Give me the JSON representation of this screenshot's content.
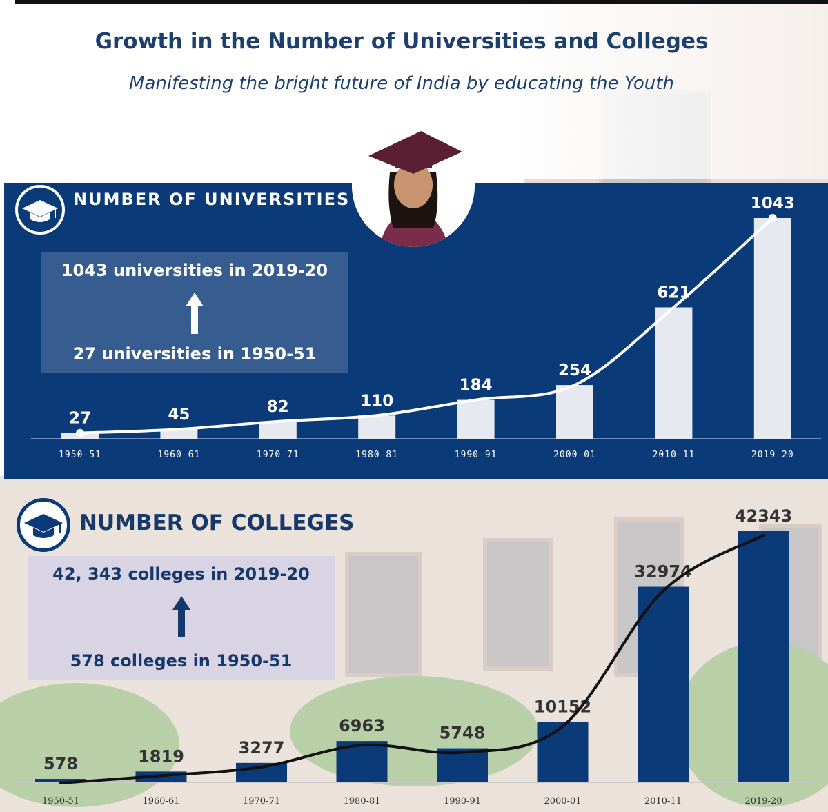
{
  "title": "Growth in the Number of Universities and Colleges",
  "subtitle": "Manifesting the bright future of India by educating the Youth",
  "colors": {
    "navy": "#0b3a78",
    "heading_blue": "#1c3f6e",
    "uni_bar": "#e6e9ef",
    "col_bar": "#0b3a78",
    "panel_text": "#ffffff"
  },
  "icons": {
    "universities": "graduation-cap-icon",
    "colleges": "graduation-cap-icon",
    "arrow": "up-arrow-icon"
  },
  "universities": {
    "heading": "NUMBER OF UNIVERSITIES",
    "info": {
      "to": "1043 universities in 2019-20",
      "from": "27 universities in 1950-51"
    }
  },
  "colleges": {
    "heading": "NUMBER OF COLLEGES",
    "info": {
      "to": "42, 343 colleges in 2019-20",
      "from": "578 colleges in 1950-51"
    }
  },
  "chart_data": [
    {
      "type": "bar",
      "title": "NUMBER OF UNIVERSITIES",
      "categories": [
        "1950-51",
        "1960-61",
        "1970-71",
        "1980-81",
        "1990-91",
        "2000-01",
        "2010-11",
        "2019-20"
      ],
      "values": [
        27,
        45,
        82,
        110,
        184,
        254,
        621,
        1043
      ],
      "data_labels": [
        "27",
        "45",
        "82",
        "110",
        "184",
        "254",
        "621",
        "1043"
      ],
      "trend_line": true,
      "ylim": [
        0,
        1043
      ],
      "grid": false
    },
    {
      "type": "bar",
      "title": "NUMBER OF COLLEGES",
      "categories": [
        "1950-51",
        "1960-61",
        "1970-71",
        "1980-81",
        "1990-91",
        "2000-01",
        "2010-11",
        "2019-20"
      ],
      "values": [
        578,
        1819,
        3277,
        6963,
        5748,
        10152,
        32974,
        42343
      ],
      "data_labels": [
        "578",
        "1819",
        "3277",
        "6963",
        "5748",
        "10152",
        "32974",
        "42343"
      ],
      "trend_line": true,
      "ylim": [
        0,
        42343
      ],
      "grid": false
    }
  ]
}
